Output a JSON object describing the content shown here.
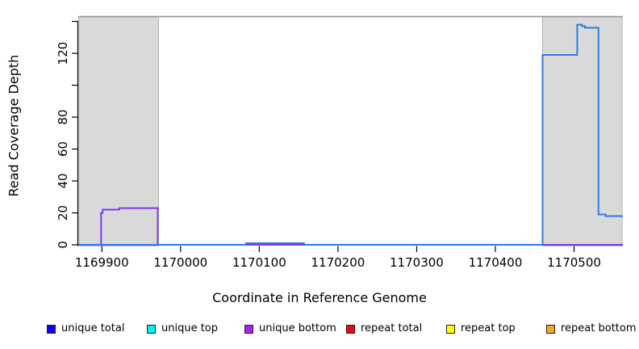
{
  "figure": {
    "x_title": "Coordinate in Reference Genome",
    "y_title": "Read Coverage Depth"
  },
  "legend": {
    "items": [
      {
        "label": "unique total",
        "color": "#0d00f2"
      },
      {
        "label": "unique top",
        "color": "#00eeee"
      },
      {
        "label": "unique bottom",
        "color": "#a522f0"
      },
      {
        "label": "repeat total",
        "color": "#fb0007"
      },
      {
        "label": "repeat top",
        "color": "#fdff00"
      },
      {
        "label": "repeat bottom",
        "color": "#f5a623"
      }
    ]
  },
  "chart_data": {
    "type": "line",
    "subtype": "step-coverage",
    "title": "",
    "xlabel": "Coordinate in Reference Genome",
    "ylabel": "Read Coverage Depth",
    "xlim": [
      1169870,
      1170562
    ],
    "ylim": [
      0,
      143
    ],
    "grid": false,
    "legend_position": "bottom",
    "x_ticks": [
      1169900,
      1170000,
      1170100,
      1170200,
      1170300,
      1170400,
      1170500
    ],
    "y_ticks": [
      0,
      20,
      40,
      60,
      80,
      100,
      120,
      140
    ],
    "y_tick_labels": [
      "0",
      "20",
      "40",
      "60",
      "80",
      "",
      "120",
      ""
    ],
    "top_boundary_value": 143,
    "top_boundary_color": "#969696",
    "highlight_regions": [
      {
        "from": 1169871,
        "to": 1169972,
        "fill": "#d9d9d9",
        "stroke": "#b3b3b3"
      },
      {
        "from": 1170460,
        "to": 1170561,
        "fill": "#d9d9d9",
        "stroke": "#b3b3b3"
      }
    ],
    "baseline_segments": [
      {
        "color": "#6f5fee",
        "from": 1169870,
        "to": 1170562,
        "note": "blended unique total/bottom baseline"
      },
      {
        "color": "#8ccf8a",
        "from": 1169899,
        "to": 1169971,
        "note": "green baseline inside left shaded region"
      },
      {
        "color": "#e4505f",
        "from": 1170080,
        "to": 1170157,
        "note": "red repeat baseline under small bump"
      },
      {
        "color": "#e4505f",
        "from": 1170460,
        "to": 1170562,
        "note": "red repeat baseline in right shaded region"
      }
    ],
    "series": [
      {
        "name": "unique bottom step (left shaded region)",
        "color": "#7a3cf0",
        "steps": [
          [
            1169870,
            0
          ],
          [
            1169899,
            20
          ],
          [
            1169901,
            22
          ],
          [
            1169922,
            23
          ],
          [
            1169971,
            0
          ]
        ]
      },
      {
        "name": "unique total step",
        "color": "#2e7de2",
        "steps": [
          [
            1169870,
            0
          ],
          [
            1170083,
            1
          ],
          [
            1170157,
            0
          ],
          [
            1170460,
            119
          ],
          [
            1170504,
            138
          ],
          [
            1170510,
            137
          ],
          [
            1170514,
            136
          ],
          [
            1170531,
            19
          ],
          [
            1170540,
            18
          ]
        ]
      }
    ]
  }
}
